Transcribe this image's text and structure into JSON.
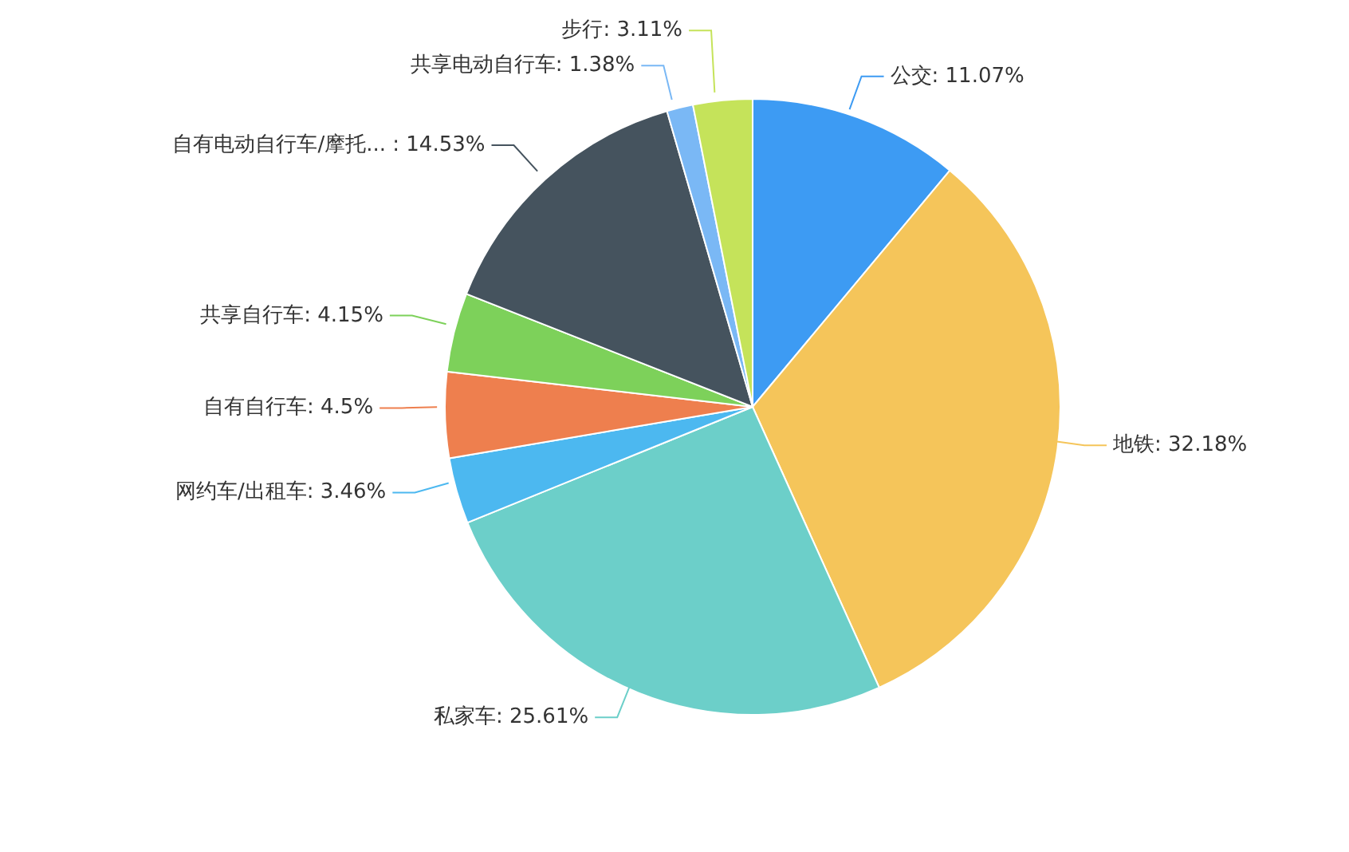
{
  "chart_data": {
    "type": "pie",
    "categories": [
      "公交",
      "地铁",
      "私家车",
      "网约车/出租车",
      "自有自行车",
      "共享自行车",
      "自有电动自行车/摩托...",
      "共享电动自行车",
      "步行"
    ],
    "values": [
      11.07,
      32.18,
      25.61,
      3.46,
      4.5,
      4.15,
      14.53,
      1.38,
      3.11
    ],
    "value_labels": [
      ": 11.07%",
      ": 32.18%",
      ": 25.61%",
      ": 3.46%",
      ": 4.5%",
      ": 4.15%",
      " : 14.53%",
      ": 1.38%",
      ": 3.11%"
    ],
    "colors": [
      "#3d9bf3",
      "#f5c55a",
      "#6ccfc9",
      "#4cb8f0",
      "#ee7f4e",
      "#7dd15a",
      "#45535e",
      "#7ab8f5",
      "#c5e35a"
    ],
    "legend": false
  }
}
